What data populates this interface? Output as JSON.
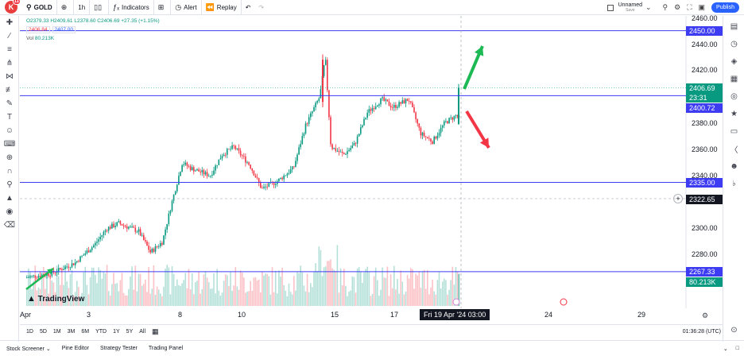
{
  "toolbar": {
    "logo_letter": "K",
    "logo_badge": "11",
    "symbol": "GOLD",
    "interval": "1h",
    "indicators_label": "Indicators",
    "alert_label": "Alert",
    "replay_label": "Replay",
    "layout_name": "Unnamed",
    "layout_status": "Save",
    "publish_label": "Publish"
  },
  "legend": {
    "ohlc": "O2379.33 H2409.61 L2378.60 C2406.69 +27.35 (+1.15%)",
    "bid": "2406.84",
    "ask": "2407.00",
    "vol_label": "Vol",
    "vol_value": "80.213K"
  },
  "price_scale": {
    "ticks": [
      "2460.00",
      "2440.00",
      "2420.00",
      "2400.00",
      "2380.00",
      "2360.00",
      "2340.00",
      "2300.00",
      "2280.00",
      "2260.00"
    ],
    "labels": {
      "line_2450": "2450.00",
      "last_price": "2406.69",
      "countdown": "23:31",
      "line_2400": "2400.72",
      "line_2335": "2335.00",
      "cursor_price": "2322.65",
      "line_2267": "2267.33",
      "volume": "80.213K"
    }
  },
  "time_axis": {
    "labels": [
      "Apr",
      "3",
      "8",
      "10",
      "15",
      "17",
      "24",
      "29"
    ],
    "cursor": "Fri 19 Apr '24   03:00"
  },
  "ranges": [
    "1D",
    "5D",
    "1M",
    "3M",
    "6M",
    "YTD",
    "1Y",
    "5Y",
    "All"
  ],
  "clock": "01:36:28 (UTC)",
  "bottom_tabs": [
    "Stock Screener",
    "Pine Editor",
    "Strategy Tester",
    "Trading Panel"
  ],
  "watermark": "TradingView",
  "colors": {
    "up": "#089981",
    "down": "#f23645",
    "hline": "#3d3cf2",
    "accent": "#2962ff",
    "arrow_up": "#1db954",
    "arrow_down": "#f23645"
  }
}
